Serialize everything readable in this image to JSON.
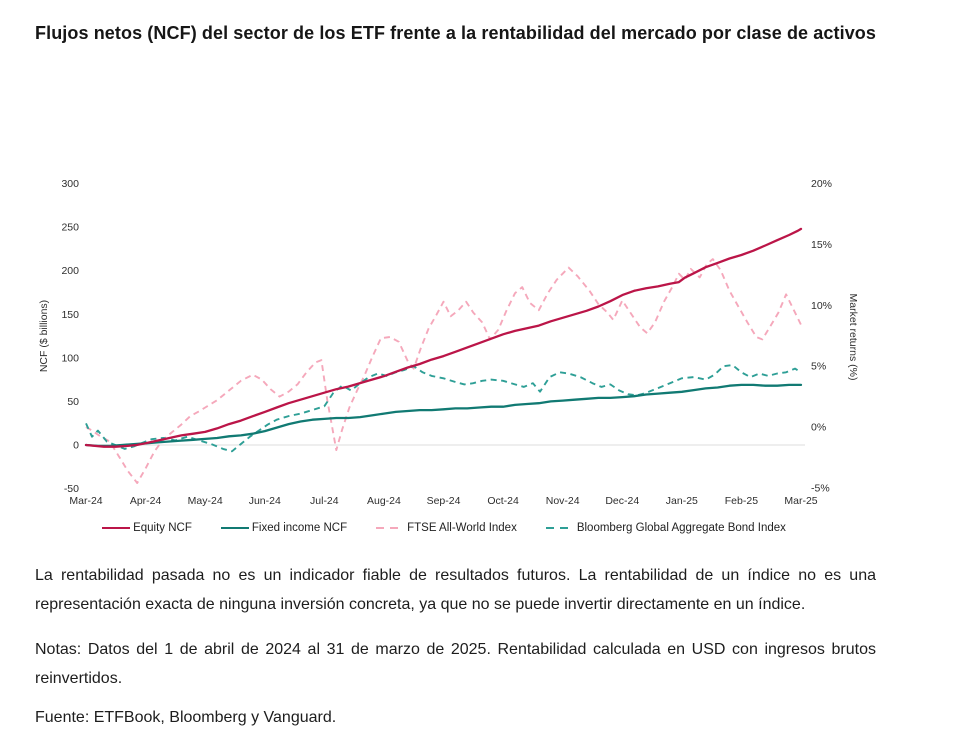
{
  "page": {
    "title": "Flujos netos (NCF) del sector de los ETF frente a la rentabilidad del mercado por clase de activos",
    "disclaimer": "La rentabilidad pasada no es un indicador fiable de resultados futuros. La rentabilidad de un índice no es una representación exacta de ninguna inversión concreta, ya que no se puede invertir directamente en un índice.",
    "notes": "Notas: Datos del 1 de abril de 2024 al 31 de marzo de 2025. Rentabilidad calculada en USD con ingresos brutos reinvertidos.",
    "source": "Fuente: ETFBook, Bloomberg y Vanguard."
  },
  "chart_data": {
    "type": "line",
    "x_tick_labels": [
      "Mar-24",
      "Apr-24",
      "May-24",
      "Jun-24",
      "Jul-24",
      "Aug-24",
      "Sep-24",
      "Oct-24",
      "Nov-24",
      "Dec-24",
      "Jan-25",
      "Feb-25",
      "Mar-25"
    ],
    "left_axis": {
      "label": "NCF ($ billions)",
      "ticks": [
        300,
        250,
        200,
        150,
        100,
        50,
        0,
        -50
      ],
      "range": [
        -50,
        300
      ]
    },
    "right_axis": {
      "label": "Market returns (%)",
      "tick_labels": [
        "20%",
        "15%",
        "10%",
        "5%",
        "0%",
        "-5%"
      ],
      "ticks": [
        20,
        15,
        10,
        5,
        0,
        -5
      ],
      "range": [
        -5,
        20
      ]
    },
    "grid": {
      "zero_line_left_axis": 0,
      "color": "#dcdcdc"
    },
    "legend_position": "bottom",
    "series": [
      {
        "name": "FTSE All-World Index",
        "axis": "right",
        "style": "dashed",
        "color": "#F5A8BB",
        "unit": "%",
        "points": [
          [
            0,
            0
          ],
          [
            0.1,
            -0.3
          ],
          [
            0.25,
            -0.8
          ],
          [
            0.4,
            -1.2
          ],
          [
            0.55,
            -2.4
          ],
          [
            0.7,
            -3.6
          ],
          [
            0.86,
            -4.6
          ],
          [
            1,
            -3.4
          ],
          [
            1.15,
            -2
          ],
          [
            1.3,
            -1
          ],
          [
            1.45,
            -0.4
          ],
          [
            1.6,
            0.2
          ],
          [
            1.75,
            0.9
          ],
          [
            1.9,
            1.3
          ],
          [
            2,
            1.6
          ],
          [
            2.2,
            2.2
          ],
          [
            2.4,
            3
          ],
          [
            2.6,
            3.8
          ],
          [
            2.8,
            4.3
          ],
          [
            2.95,
            3.9
          ],
          [
            3.1,
            3.1
          ],
          [
            3.25,
            2.5
          ],
          [
            3.4,
            2.9
          ],
          [
            3.55,
            3.5
          ],
          [
            3.7,
            4.5
          ],
          [
            3.85,
            5.3
          ],
          [
            3.95,
            5.5
          ],
          [
            4.05,
            2.2
          ],
          [
            4.12,
            0.3
          ],
          [
            4.2,
            -1.9
          ],
          [
            4.3,
            -0.2
          ],
          [
            4.42,
            1.6
          ],
          [
            4.55,
            3
          ],
          [
            4.68,
            4.3
          ],
          [
            4.8,
            5.7
          ],
          [
            4.95,
            7.3
          ],
          [
            5.1,
            7.4
          ],
          [
            5.25,
            7
          ],
          [
            5.4,
            5.4
          ],
          [
            5.5,
            4.8
          ],
          [
            5.62,
            6.5
          ],
          [
            5.75,
            8.1
          ],
          [
            5.88,
            9.2
          ],
          [
            6,
            10.3
          ],
          [
            6.12,
            9.1
          ],
          [
            6.25,
            9.6
          ],
          [
            6.38,
            10.3
          ],
          [
            6.5,
            9.4
          ],
          [
            6.65,
            8.6
          ],
          [
            6.78,
            7.2
          ],
          [
            6.92,
            8
          ],
          [
            7.05,
            9.5
          ],
          [
            7.2,
            11
          ],
          [
            7.32,
            11.5
          ],
          [
            7.45,
            10.2
          ],
          [
            7.6,
            9.6
          ],
          [
            7.75,
            11
          ],
          [
            7.9,
            12.1
          ],
          [
            8.1,
            13.1
          ],
          [
            8.25,
            12.4
          ],
          [
            8.45,
            11.2
          ],
          [
            8.6,
            10.1
          ],
          [
            8.75,
            9.4
          ],
          [
            8.85,
            8.8
          ],
          [
            9,
            10.4
          ],
          [
            9.15,
            9.3
          ],
          [
            9.3,
            8.2
          ],
          [
            9.42,
            7.7
          ],
          [
            9.55,
            8.6
          ],
          [
            9.7,
            10.3
          ],
          [
            9.85,
            11.6
          ],
          [
            9.95,
            12.6
          ],
          [
            10.05,
            12.1
          ],
          [
            10.15,
            13
          ],
          [
            10.3,
            12.3
          ],
          [
            10.42,
            13.4
          ],
          [
            10.52,
            13.8
          ],
          [
            10.65,
            12.9
          ],
          [
            10.8,
            11.2
          ],
          [
            10.95,
            9.9
          ],
          [
            11.1,
            8.6
          ],
          [
            11.25,
            7.4
          ],
          [
            11.35,
            7.2
          ],
          [
            11.5,
            8.4
          ],
          [
            11.62,
            9.4
          ],
          [
            11.75,
            10.9
          ],
          [
            11.87,
            9.7
          ],
          [
            12,
            8.4
          ]
        ]
      },
      {
        "name": "Bloomberg Global Aggregate Bond Index",
        "axis": "right",
        "style": "dashed",
        "color": "#2E9F96",
        "unit": "%",
        "points": [
          [
            0,
            0.3
          ],
          [
            0.1,
            -0.8
          ],
          [
            0.2,
            -0.3
          ],
          [
            0.35,
            -1.2
          ],
          [
            0.5,
            -1.5
          ],
          [
            0.65,
            -1.8
          ],
          [
            0.8,
            -1.6
          ],
          [
            0.95,
            -1.3
          ],
          [
            1.1,
            -1
          ],
          [
            1.3,
            -0.9
          ],
          [
            1.5,
            -1.1
          ],
          [
            1.7,
            -0.8
          ],
          [
            1.9,
            -1.1
          ],
          [
            2.1,
            -1.4
          ],
          [
            2.3,
            -1.8
          ],
          [
            2.45,
            -2
          ],
          [
            2.6,
            -1.4
          ],
          [
            2.75,
            -0.8
          ],
          [
            2.9,
            -0.3
          ],
          [
            3.05,
            0.2
          ],
          [
            3.2,
            0.6
          ],
          [
            3.4,
            0.9
          ],
          [
            3.6,
            1.1
          ],
          [
            3.8,
            1.4
          ],
          [
            4,
            1.7
          ],
          [
            4.15,
            2.8
          ],
          [
            4.3,
            3.4
          ],
          [
            4.45,
            3
          ],
          [
            4.6,
            3.6
          ],
          [
            4.75,
            4.1
          ],
          [
            4.9,
            4.4
          ],
          [
            5.05,
            4.2
          ],
          [
            5.2,
            4.5
          ],
          [
            5.35,
            4.7
          ],
          [
            5.5,
            5
          ],
          [
            5.65,
            4.5
          ],
          [
            5.8,
            4.2
          ],
          [
            6,
            4
          ],
          [
            6.2,
            3.7
          ],
          [
            6.35,
            3.5
          ],
          [
            6.5,
            3.6
          ],
          [
            6.65,
            3.8
          ],
          [
            6.8,
            3.9
          ],
          [
            7,
            3.8
          ],
          [
            7.2,
            3.5
          ],
          [
            7.35,
            3.3
          ],
          [
            7.5,
            3.6
          ],
          [
            7.62,
            2.9
          ],
          [
            7.78,
            4.1
          ],
          [
            7.95,
            4.5
          ],
          [
            8.1,
            4.4
          ],
          [
            8.3,
            4.1
          ],
          [
            8.5,
            3.6
          ],
          [
            8.65,
            3.3
          ],
          [
            8.8,
            3.5
          ],
          [
            8.95,
            3
          ],
          [
            9.1,
            2.7
          ],
          [
            9.25,
            2.6
          ],
          [
            9.4,
            2.8
          ],
          [
            9.6,
            3.2
          ],
          [
            9.8,
            3.6
          ],
          [
            10,
            4
          ],
          [
            10.2,
            4.1
          ],
          [
            10.4,
            3.9
          ],
          [
            10.55,
            4.3
          ],
          [
            10.7,
            5
          ],
          [
            10.85,
            5.1
          ],
          [
            11,
            4.5
          ],
          [
            11.15,
            4.1
          ],
          [
            11.3,
            4.4
          ],
          [
            11.45,
            4.2
          ],
          [
            11.6,
            4.4
          ],
          [
            11.75,
            4.5
          ],
          [
            11.9,
            4.8
          ],
          [
            12,
            4.5
          ]
        ]
      },
      {
        "name": "Fixed income NCF",
        "axis": "left",
        "style": "solid",
        "color": "#117A73",
        "unit": "$B",
        "points": [
          [
            0,
            0
          ],
          [
            0.2,
            -1
          ],
          [
            0.4,
            -1
          ],
          [
            0.6,
            0
          ],
          [
            0.8,
            1
          ],
          [
            1,
            2
          ],
          [
            1.2,
            3
          ],
          [
            1.4,
            4
          ],
          [
            1.6,
            5
          ],
          [
            1.8,
            6
          ],
          [
            2,
            7
          ],
          [
            2.2,
            8
          ],
          [
            2.4,
            10
          ],
          [
            2.6,
            11
          ],
          [
            2.8,
            13
          ],
          [
            3,
            16
          ],
          [
            3.2,
            20
          ],
          [
            3.4,
            24
          ],
          [
            3.6,
            27
          ],
          [
            3.8,
            29
          ],
          [
            4,
            30
          ],
          [
            4.2,
            31
          ],
          [
            4.4,
            31
          ],
          [
            4.6,
            32
          ],
          [
            4.8,
            34
          ],
          [
            5,
            36
          ],
          [
            5.2,
            38
          ],
          [
            5.4,
            39
          ],
          [
            5.6,
            40
          ],
          [
            5.8,
            40
          ],
          [
            6,
            41
          ],
          [
            6.2,
            42
          ],
          [
            6.4,
            42
          ],
          [
            6.6,
            43
          ],
          [
            6.8,
            44
          ],
          [
            7,
            44
          ],
          [
            7.2,
            46
          ],
          [
            7.4,
            47
          ],
          [
            7.6,
            48
          ],
          [
            7.8,
            50
          ],
          [
            8,
            51
          ],
          [
            8.2,
            52
          ],
          [
            8.4,
            53
          ],
          [
            8.6,
            54
          ],
          [
            8.8,
            54
          ],
          [
            9,
            55
          ],
          [
            9.2,
            56
          ],
          [
            9.4,
            58
          ],
          [
            9.6,
            59
          ],
          [
            9.8,
            60
          ],
          [
            10,
            61
          ],
          [
            10.2,
            63
          ],
          [
            10.4,
            65
          ],
          [
            10.6,
            66
          ],
          [
            10.8,
            68
          ],
          [
            11,
            69
          ],
          [
            11.2,
            69
          ],
          [
            11.4,
            68
          ],
          [
            11.6,
            68
          ],
          [
            11.8,
            69
          ],
          [
            12,
            69
          ]
        ]
      },
      {
        "name": "Equity NCF",
        "axis": "left",
        "style": "solid",
        "color": "#BB1548",
        "unit": "$B",
        "points": [
          [
            0,
            0
          ],
          [
            0.15,
            -1
          ],
          [
            0.3,
            -2
          ],
          [
            0.5,
            -2
          ],
          [
            0.7,
            -1
          ],
          [
            0.85,
            0
          ],
          [
            1,
            2
          ],
          [
            1.2,
            5
          ],
          [
            1.4,
            8
          ],
          [
            1.6,
            11
          ],
          [
            1.8,
            13
          ],
          [
            2,
            15
          ],
          [
            2.2,
            19
          ],
          [
            2.4,
            24
          ],
          [
            2.6,
            28
          ],
          [
            2.8,
            33
          ],
          [
            3,
            38
          ],
          [
            3.2,
            43
          ],
          [
            3.4,
            48
          ],
          [
            3.6,
            52
          ],
          [
            3.8,
            56
          ],
          [
            4,
            60
          ],
          [
            4.2,
            64
          ],
          [
            4.4,
            67
          ],
          [
            4.6,
            71
          ],
          [
            4.8,
            75
          ],
          [
            5,
            79
          ],
          [
            5.2,
            84
          ],
          [
            5.4,
            89
          ],
          [
            5.6,
            93
          ],
          [
            5.8,
            98
          ],
          [
            6,
            102
          ],
          [
            6.2,
            107
          ],
          [
            6.4,
            112
          ],
          [
            6.6,
            117
          ],
          [
            6.8,
            122
          ],
          [
            7,
            127
          ],
          [
            7.2,
            131
          ],
          [
            7.4,
            134
          ],
          [
            7.6,
            137
          ],
          [
            7.8,
            142
          ],
          [
            8,
            146
          ],
          [
            8.2,
            150
          ],
          [
            8.4,
            154
          ],
          [
            8.6,
            159
          ],
          [
            8.8,
            165
          ],
          [
            9,
            172
          ],
          [
            9.2,
            177
          ],
          [
            9.4,
            180
          ],
          [
            9.6,
            182
          ],
          [
            9.8,
            185
          ],
          [
            9.95,
            187
          ],
          [
            10.05,
            192
          ],
          [
            10.2,
            197
          ],
          [
            10.4,
            204
          ],
          [
            10.6,
            209
          ],
          [
            10.8,
            214
          ],
          [
            11,
            218
          ],
          [
            11.2,
            223
          ],
          [
            11.4,
            229
          ],
          [
            11.6,
            235
          ],
          [
            11.8,
            241
          ],
          [
            11.95,
            246
          ],
          [
            12,
            248
          ]
        ]
      }
    ],
    "legend_order": [
      "Equity NCF",
      "Fixed income NCF",
      "FTSE All-World Index",
      "Bloomberg Global Aggregate Bond Index"
    ]
  }
}
